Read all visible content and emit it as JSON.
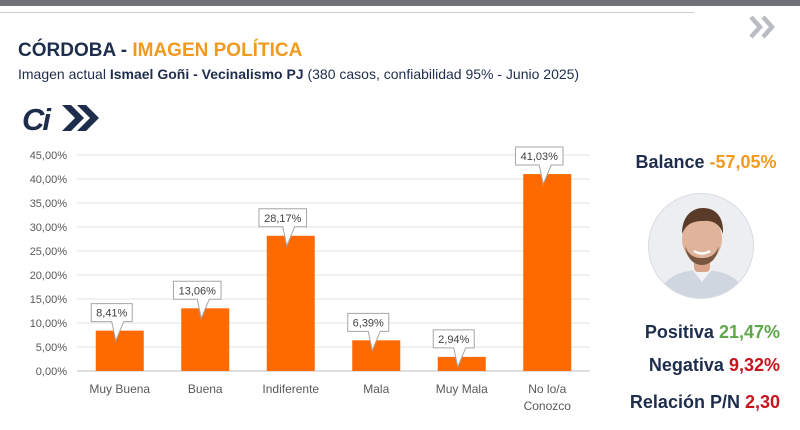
{
  "header": {
    "title_main": "CÓRDOBA - ",
    "title_accent": "IMAGEN POLÍTICA",
    "subtitle_prefix": "Imagen actual ",
    "subtitle_bold": "Ismael Goñi - Vecinalismo PJ",
    "subtitle_suffix": " (380 casos, confiabilidad 95% - Junio 2025)"
  },
  "logo": {
    "text": "Ci"
  },
  "colors": {
    "bar": "#ff6a00",
    "accent": "#f29a1f",
    "navy": "#1f2d4d",
    "positive": "#5fa84a",
    "negative": "#c8141e"
  },
  "chart_data": {
    "type": "bar",
    "categories": [
      "Muy Buena",
      "Buena",
      "Indiferente",
      "Mala",
      "Muy Mala",
      "No lo/a Conozco"
    ],
    "values": [
      8.41,
      13.06,
      28.17,
      6.39,
      2.94,
      41.03
    ],
    "data_labels": [
      "8,41%",
      "13,06%",
      "28,17%",
      "6,39%",
      "2,94%",
      "41,03%"
    ],
    "ylim": [
      0,
      45
    ],
    "yticks": [
      0,
      5,
      10,
      15,
      20,
      25,
      30,
      35,
      40,
      45
    ],
    "ytick_labels": [
      "0,00%",
      "5,00%",
      "10,00%",
      "15,00%",
      "20,00%",
      "25,00%",
      "30,00%",
      "35,00%",
      "40,00%",
      "45,00%"
    ],
    "grid": true,
    "title": "",
    "xlabel": "",
    "ylabel": ""
  },
  "summary": {
    "balance_label": "Balance ",
    "balance_value": "-57,05%",
    "positive_label": "Positiva ",
    "positive_value": "21,47%",
    "negative_label": "Negativa ",
    "negative_value": "9,32%",
    "ratio_label": "Relación P/N ",
    "ratio_value": "2,30"
  }
}
